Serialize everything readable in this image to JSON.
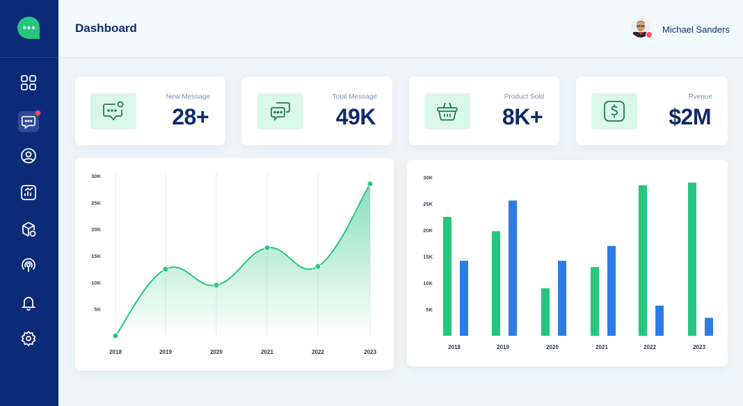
{
  "header": {
    "title": "Dashboard",
    "user_name": "Michael Sanders"
  },
  "sidebar": {
    "items": [
      {
        "icon": "grid-icon"
      },
      {
        "icon": "message-icon",
        "active": true,
        "notification": true
      },
      {
        "icon": "user-icon"
      },
      {
        "icon": "analytics-icon"
      },
      {
        "icon": "package-icon"
      },
      {
        "icon": "broadcast-icon"
      },
      {
        "icon": "bell-icon"
      },
      {
        "icon": "gear-icon"
      }
    ]
  },
  "stats": [
    {
      "label": "New Message",
      "value": "28+",
      "icon": "message-notification-icon"
    },
    {
      "label": "Total Message",
      "value": "49K",
      "icon": "messages-icon"
    },
    {
      "label": "Product Sold",
      "value": "8K+",
      "icon": "basket-icon"
    },
    {
      "label": "Rvenue",
      "value": "$2M",
      "icon": "dollar-icon"
    }
  ],
  "colors": {
    "sidebar": "#0b2a78",
    "green": "#25c77f",
    "blue": "#2f7be6",
    "navy_text": "#0f2a6b"
  },
  "chart_data": [
    {
      "type": "area",
      "categories": [
        "2018",
        "2019",
        "2020",
        "2021",
        "2022",
        "2023"
      ],
      "series": [
        {
          "values": [
            0,
            12500,
            9500,
            16500,
            13000,
            28500
          ]
        }
      ],
      "ylim": [
        0,
        30000
      ],
      "yticks": [
        "30K",
        "25K",
        "20K",
        "15K",
        "10K",
        "5K"
      ],
      "grid": "vertical"
    },
    {
      "type": "bar",
      "categories": [
        "2018",
        "2019",
        "2020",
        "2021",
        "2022",
        "2023"
      ],
      "series": [
        {
          "values": [
            22500,
            19800,
            9000,
            13000,
            28500,
            29000
          ]
        },
        {
          "values": [
            14200,
            25600,
            14200,
            17000,
            5700,
            3400
          ]
        }
      ],
      "ylim": [
        0,
        30000
      ],
      "yticks": [
        "30K",
        "25K",
        "20K",
        "15K",
        "10K",
        "5K"
      ]
    }
  ]
}
